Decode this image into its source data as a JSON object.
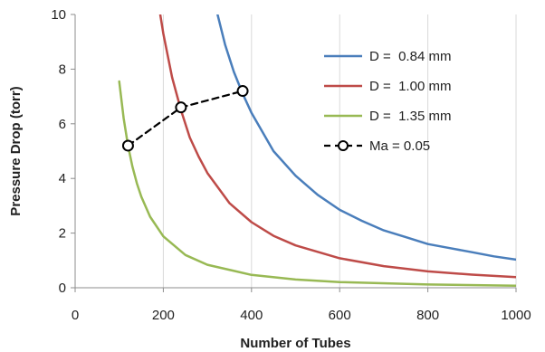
{
  "chart_data": {
    "type": "line",
    "xlabel": "Number of Tubes",
    "ylabel": "Pressure Drop (torr)",
    "xlim": [
      0,
      1000
    ],
    "ylim": [
      0,
      10
    ],
    "xticks": [
      0,
      200,
      400,
      600,
      800,
      1000
    ],
    "yticks": [
      0,
      2,
      4,
      6,
      8,
      10
    ],
    "grid": "vertical",
    "legend_position": "top-right",
    "series": [
      {
        "name": "D =  0.84 mm",
        "color": "#4a7ebb",
        "style": "solid",
        "x": [
          323,
          340,
          360,
          380,
          400,
          450,
          500,
          550,
          600,
          650,
          700,
          750,
          800,
          850,
          900,
          950,
          1000
        ],
        "y": [
          10.0,
          8.9,
          7.9,
          7.1,
          6.4,
          5.0,
          4.1,
          3.4,
          2.85,
          2.45,
          2.1,
          1.85,
          1.6,
          1.45,
          1.3,
          1.15,
          1.03
        ]
      },
      {
        "name": "D =  1.00 mm",
        "color": "#be4b48",
        "style": "solid",
        "x": [
          193,
          200,
          220,
          240,
          260,
          280,
          300,
          350,
          400,
          450,
          500,
          600,
          700,
          800,
          900,
          1000
        ],
        "y": [
          10.0,
          9.3,
          7.7,
          6.5,
          5.5,
          4.8,
          4.2,
          3.1,
          2.4,
          1.9,
          1.55,
          1.08,
          0.79,
          0.6,
          0.48,
          0.39
        ]
      },
      {
        "name": "D =  1.35 mm",
        "color": "#98b954",
        "style": "solid",
        "x": [
          100,
          110,
          120,
          130,
          140,
          150,
          170,
          200,
          250,
          300,
          400,
          500,
          600,
          800,
          1000
        ],
        "y": [
          7.55,
          6.2,
          5.2,
          4.43,
          3.82,
          3.33,
          2.6,
          1.88,
          1.2,
          0.84,
          0.47,
          0.3,
          0.21,
          0.12,
          0.075
        ]
      },
      {
        "name": "Ma = 0.05",
        "color": "#000000",
        "style": "dashed",
        "markers": "circle",
        "x": [
          120,
          240,
          380
        ],
        "y": [
          5.2,
          6.6,
          7.2
        ]
      }
    ]
  }
}
